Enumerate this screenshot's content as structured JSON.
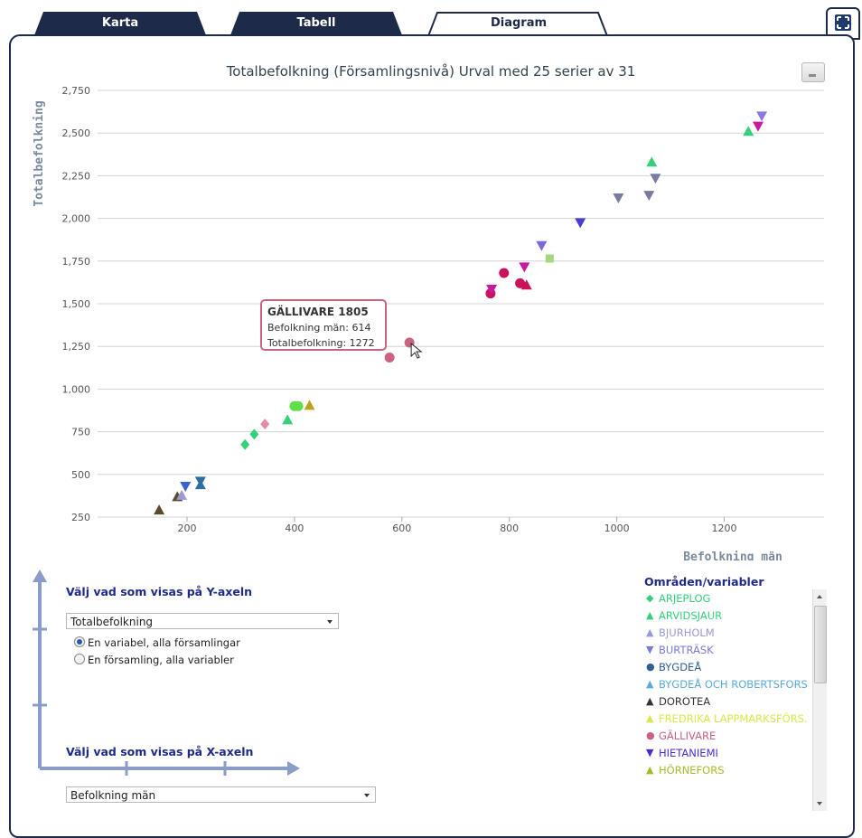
{
  "tabs": [
    {
      "label": "Karta",
      "active": false
    },
    {
      "label": "Tabell",
      "active": false
    },
    {
      "label": "Diagram",
      "active": true
    }
  ],
  "icons": {
    "expand": "expand-icon",
    "export": "download-icon"
  },
  "chart_data": {
    "type": "scatter",
    "title": "Totalbefolkning (Församlingsnivå) Urval med 25 serier av 31",
    "xlabel": "Befolkning män",
    "ylabel": "Totalbefolkning",
    "xlim": [
      75,
      1400
    ],
    "ylim": [
      250,
      2750
    ],
    "xticks": [
      "200",
      "400",
      "600",
      "800",
      "1000",
      "1200"
    ],
    "yticks": [
      "250",
      "500",
      "750",
      "1,000",
      "1,250",
      "1,500",
      "1,750",
      "2,000",
      "2,250",
      "2,500",
      "2,750"
    ],
    "grid": true,
    "points": [
      {
        "x": 148,
        "y": 292,
        "shape": "tri-up",
        "color": "#5a4a2e"
      },
      {
        "x": 182,
        "y": 370,
        "shape": "tri-up",
        "color": "#5a4a2e"
      },
      {
        "x": 190,
        "y": 378,
        "shape": "tri-up",
        "color": "#9a9ad4"
      },
      {
        "x": 197,
        "y": 430,
        "shape": "tri-down",
        "color": "#3a5fd8"
      },
      {
        "x": 225,
        "y": 440,
        "shape": "tri-up",
        "color": "#2f6fa0"
      },
      {
        "x": 225,
        "y": 460,
        "shape": "tri-down",
        "color": "#2f6fa0"
      },
      {
        "x": 308,
        "y": 675,
        "shape": "diamond",
        "color": "#36d07a"
      },
      {
        "x": 325,
        "y": 735,
        "shape": "diamond",
        "color": "#36d07a"
      },
      {
        "x": 345,
        "y": 795,
        "shape": "diamond",
        "color": "#e889a8"
      },
      {
        "x": 387,
        "y": 820,
        "shape": "tri-up",
        "color": "#36d07a"
      },
      {
        "x": 400,
        "y": 900,
        "shape": "circle",
        "color": "#5fe04a"
      },
      {
        "x": 407,
        "y": 900,
        "shape": "circle",
        "color": "#5fe04a"
      },
      {
        "x": 428,
        "y": 905,
        "shape": "tri-up",
        "color": "#c0a020"
      },
      {
        "x": 577,
        "y": 1185,
        "shape": "circle",
        "color": "#c9637f"
      },
      {
        "x": 614,
        "y": 1272,
        "shape": "circle",
        "color": "#c9637f"
      },
      {
        "x": 765,
        "y": 1560,
        "shape": "circle",
        "color": "#c8145a"
      },
      {
        "x": 767,
        "y": 1585,
        "shape": "tri-down",
        "color": "#c81aa0"
      },
      {
        "x": 790,
        "y": 1680,
        "shape": "circle",
        "color": "#c8145a"
      },
      {
        "x": 820,
        "y": 1620,
        "shape": "circle",
        "color": "#c8145a"
      },
      {
        "x": 828,
        "y": 1715,
        "shape": "tri-down",
        "color": "#c81aa0"
      },
      {
        "x": 832,
        "y": 1610,
        "shape": "tri-up",
        "color": "#c8145a"
      },
      {
        "x": 860,
        "y": 1840,
        "shape": "tri-down",
        "color": "#7a68e0"
      },
      {
        "x": 875,
        "y": 1765,
        "shape": "square",
        "color": "#a8d67a"
      },
      {
        "x": 932,
        "y": 1975,
        "shape": "tri-down",
        "color": "#4a3ad8"
      },
      {
        "x": 1003,
        "y": 2120,
        "shape": "tri-down",
        "color": "#7a7aa0"
      },
      {
        "x": 1060,
        "y": 2135,
        "shape": "tri-down",
        "color": "#7a7aa0"
      },
      {
        "x": 1065,
        "y": 2330,
        "shape": "tri-up",
        "color": "#36d07a"
      },
      {
        "x": 1072,
        "y": 2235,
        "shape": "tri-down",
        "color": "#7a7aa0"
      },
      {
        "x": 1245,
        "y": 2510,
        "shape": "tri-up",
        "color": "#36d07a"
      },
      {
        "x": 1263,
        "y": 2540,
        "shape": "tri-down",
        "color": "#c81aa0"
      },
      {
        "x": 1270,
        "y": 2600,
        "shape": "tri-down",
        "color": "#8a7ae0"
      }
    ]
  },
  "tooltip": {
    "title": "GÄLLIVARE 1805",
    "line1": "Befolkning män: 614",
    "line2": "Totalbefolkning: 1272"
  },
  "y_control": {
    "label": "Välj vad som visas på Y-axeln",
    "selected": "Totalbefolkning",
    "radio1": "En variabel, alla församlingar",
    "radio2": "En församling, alla variabler"
  },
  "x_control": {
    "label": "Välj vad som visas på X-axeln",
    "selected": "Befolkning män"
  },
  "legend": {
    "title": "Områden/variabler",
    "items": [
      {
        "label": "ARJEPLOG",
        "marker": "◆",
        "color": "#36d07a"
      },
      {
        "label": "ARVIDSJAUR",
        "marker": "▲",
        "color": "#36d07a"
      },
      {
        "label": "BJURHOLM",
        "marker": "▲",
        "color": "#9a9ad4"
      },
      {
        "label": "BURTRÄSK",
        "marker": "▼",
        "color": "#7a7ad8"
      },
      {
        "label": "BYGDEÅ",
        "marker": "●",
        "color": "#2f5f95"
      },
      {
        "label": "BYGDEÅ OCH ROBERTSFORS",
        "marker": "▲",
        "color": "#5aaad8"
      },
      {
        "label": "DOROTEA",
        "marker": "▲",
        "color": "#333333"
      },
      {
        "label": "FREDRIKA LAPPMARKSFÖRS.",
        "marker": "▲",
        "color": "#d8e84a"
      },
      {
        "label": "GÄLLIVARE",
        "marker": "●",
        "color": "#c9637f"
      },
      {
        "label": "HIETANIEMI",
        "marker": "▼",
        "color": "#4a2ad8"
      },
      {
        "label": "HÖRNEFORS",
        "marker": "▲",
        "color": "#a8b82a"
      }
    ]
  }
}
